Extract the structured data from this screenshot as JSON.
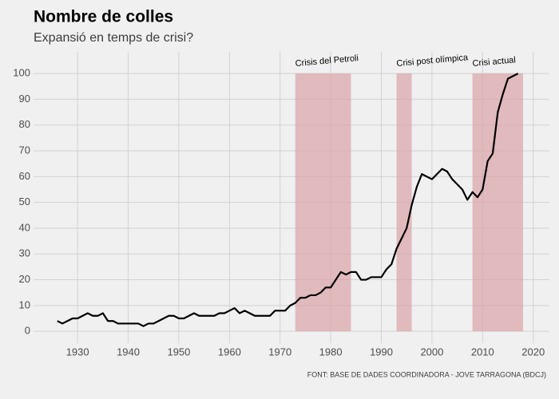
{
  "chart_data": {
    "type": "line",
    "title": "Nombre de colles",
    "subtitle": "Expansió en temps de crisi?",
    "source": "FONT: BASE DE DADES COORDINADORA - JOVE TARRAGONA (BDCJ)",
    "x": [
      1926,
      1927,
      1928,
      1929,
      1930,
      1931,
      1932,
      1933,
      1934,
      1935,
      1936,
      1937,
      1938,
      1939,
      1940,
      1941,
      1942,
      1943,
      1944,
      1945,
      1946,
      1947,
      1948,
      1949,
      1950,
      1951,
      1952,
      1953,
      1954,
      1955,
      1956,
      1957,
      1958,
      1959,
      1960,
      1961,
      1962,
      1963,
      1964,
      1965,
      1966,
      1967,
      1968,
      1969,
      1970,
      1971,
      1972,
      1973,
      1974,
      1975,
      1976,
      1977,
      1978,
      1979,
      1980,
      1981,
      1982,
      1983,
      1984,
      1985,
      1986,
      1987,
      1988,
      1989,
      1990,
      1991,
      1992,
      1993,
      1994,
      1995,
      1996,
      1997,
      1998,
      1999,
      2000,
      2001,
      2002,
      2003,
      2004,
      2005,
      2006,
      2007,
      2008,
      2009,
      2010,
      2011,
      2012,
      2013,
      2014,
      2015,
      2016,
      2017
    ],
    "series": [
      {
        "color": "#000000",
        "values": [
          4,
          3,
          4,
          5,
          5,
          6,
          7,
          6,
          6,
          7,
          4,
          4,
          3,
          3,
          3,
          3,
          3,
          2,
          3,
          3,
          4,
          5,
          6,
          6,
          5,
          5,
          6,
          7,
          6,
          6,
          6,
          6,
          7,
          7,
          8,
          9,
          7,
          8,
          7,
          6,
          6,
          6,
          6,
          8,
          8,
          8,
          10,
          11,
          13,
          13,
          14,
          14,
          15,
          17,
          17,
          20,
          23,
          22,
          23,
          23,
          20,
          20,
          21,
          21,
          21,
          24,
          26,
          32,
          36,
          40,
          49,
          56,
          61,
          60,
          59,
          61,
          63,
          62,
          59,
          57,
          55,
          51,
          54,
          52,
          55,
          66,
          69,
          85,
          92,
          98,
          99,
          100
        ]
      }
    ],
    "bands": [
      {
        "label": "Crisis del Petroli",
        "start": 1973,
        "end": 1984
      },
      {
        "label": "Crisi post olímpica",
        "start": 1993,
        "end": 1996
      },
      {
        "label": "Crisi actual",
        "start": 2008,
        "end": 2018
      }
    ],
    "band_color": "#d9a3a6",
    "band_ylim": [
      0,
      100
    ],
    "xlim": [
      1921.3,
      2023.2
    ],
    "ylim": [
      -4.6,
      108.4
    ],
    "xticks": [
      1930,
      1940,
      1950,
      1960,
      1970,
      1980,
      1990,
      2000,
      2010,
      2020
    ],
    "yticks": [
      0,
      10,
      20,
      30,
      40,
      50,
      60,
      70,
      80,
      90,
      100
    ],
    "grid": true
  }
}
